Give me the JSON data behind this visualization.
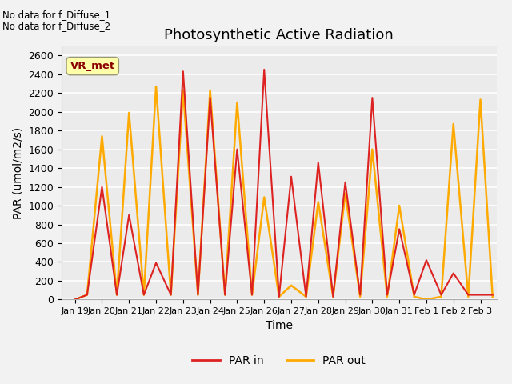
{
  "title": "Photosynthetic Active Radiation",
  "ylabel": "PAR (umol/m2/s)",
  "xlabel": "Time",
  "ann1": "No data for f_Diffuse_1",
  "ann2": "No data for f_Diffuse_2",
  "box_label": "VR_met",
  "x_labels": [
    "Jan 19",
    "Jan 20",
    "Jan 21",
    "Jan 22",
    "Jan 23",
    "Jan 24",
    "Jan 25",
    "Jan 26",
    "Jan 27",
    "Jan 28",
    "Jan 29",
    "Jan 30",
    "Jan 31",
    "Feb 1",
    "Feb 2",
    "Feb 3"
  ],
  "par_in_color": "#dd2222",
  "par_out_color": "#ffaa00",
  "ylim": [
    0,
    2700
  ],
  "yticks": [
    0,
    200,
    400,
    600,
    800,
    1000,
    1200,
    1400,
    1600,
    1800,
    2000,
    2200,
    2400,
    2600
  ],
  "background_color": "#ebebeb",
  "grid_color": "#ffffff",
  "title_fontsize": 13,
  "label_fontsize": 10,
  "tick_fontsize": 9,
  "par_in_x": [
    0,
    0.45,
    1.0,
    1.55,
    2.0,
    2.55,
    3.0,
    3.55,
    4.0,
    4.55,
    5.0,
    5.55,
    6.0,
    6.55,
    7.0,
    7.55,
    8.0,
    8.55,
    9.0,
    9.55,
    10.0,
    10.55,
    11.0,
    11.55,
    12.0,
    12.55,
    13.0,
    13.55,
    14.0,
    14.55,
    15.0,
    15.45
  ],
  "par_in_y": [
    0,
    50,
    1200,
    50,
    900,
    50,
    390,
    50,
    2430,
    50,
    2150,
    50,
    1600,
    50,
    2450,
    30,
    1310,
    30,
    1460,
    30,
    1250,
    50,
    2150,
    50,
    750,
    50,
    420,
    50,
    280,
    50,
    50,
    50
  ],
  "par_out_x": [
    0,
    0.45,
    1.0,
    1.55,
    2.0,
    2.55,
    3.0,
    3.55,
    4.0,
    4.55,
    5.0,
    5.55,
    6.0,
    6.55,
    7.0,
    7.55,
    8.0,
    8.55,
    9.0,
    9.55,
    10.0,
    10.55,
    11.0,
    11.55,
    12.0,
    12.55,
    13.0,
    13.55,
    14.0,
    14.55,
    15.0,
    15.45
  ],
  "par_out_y": [
    0,
    50,
    1740,
    50,
    1990,
    50,
    2270,
    50,
    2230,
    50,
    2230,
    50,
    2100,
    50,
    1090,
    30,
    150,
    30,
    1040,
    30,
    1130,
    30,
    1600,
    30,
    1000,
    30,
    0,
    30,
    1870,
    30,
    2130,
    30
  ]
}
